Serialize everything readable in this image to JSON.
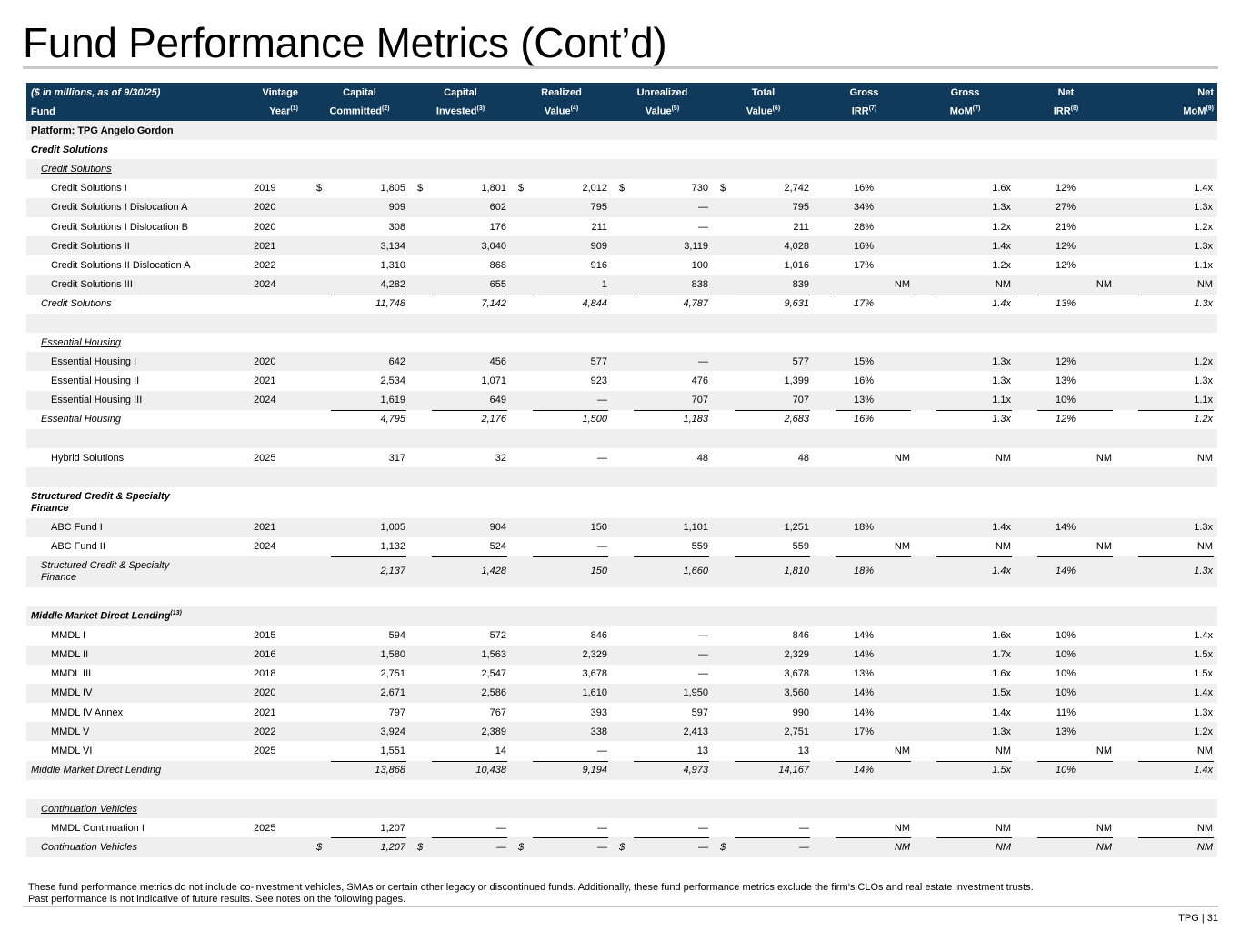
{
  "title": "Fund Performance Metrics (Cont’d)",
  "header": {
    "row1": [
      "($ in millions, as of 9/30/25)",
      "Vintage",
      "Capital",
      "Capital",
      "Realized",
      "Unrealized",
      "Total",
      "Gross",
      "Gross",
      "Net",
      "Net"
    ],
    "row2": [
      {
        "t": "Fund",
        "s": ""
      },
      {
        "t": "Year",
        "s": "(1)"
      },
      {
        "t": "Committed",
        "s": "(2)"
      },
      {
        "t": "Invested",
        "s": "(3)"
      },
      {
        "t": "Value",
        "s": "(4)"
      },
      {
        "t": "Value",
        "s": "(5)"
      },
      {
        "t": "Value",
        "s": "(6)"
      },
      {
        "t": "IRR",
        "s": "(7)"
      },
      {
        "t": "MoM",
        "s": "(7)"
      },
      {
        "t": "IRR",
        "s": "(8)"
      },
      {
        "t": "MoM",
        "s": "(9)"
      }
    ]
  },
  "rows": [
    {
      "kind": "heading",
      "label": "Platform: TPG Angelo Gordon",
      "style": "b",
      "level": 0
    },
    {
      "kind": "heading",
      "label": "Credit Solutions",
      "style": "bi",
      "level": 0
    },
    {
      "kind": "heading",
      "label": "Credit Solutions",
      "style": "iu",
      "level": 1
    },
    {
      "kind": "fund",
      "label": "Credit Solutions I",
      "year": "2019",
      "cur": true,
      "vals": [
        "1,805",
        "1,801",
        "2,012",
        "730",
        "2,742"
      ],
      "metrics": [
        "16%",
        "1.6x",
        "12%",
        "1.4x"
      ]
    },
    {
      "kind": "fund",
      "label": "Credit Solutions I Dislocation A",
      "year": "2020",
      "vals": [
        "909",
        "602",
        "795",
        "—",
        "795"
      ],
      "metrics": [
        "34%",
        "1.3x",
        "27%",
        "1.3x"
      ]
    },
    {
      "kind": "fund",
      "label": "Credit Solutions I Dislocation B",
      "year": "2020",
      "vals": [
        "308",
        "176",
        "211",
        "—",
        "211"
      ],
      "metrics": [
        "28%",
        "1.2x",
        "21%",
        "1.2x"
      ]
    },
    {
      "kind": "fund",
      "label": "Credit Solutions II",
      "year": "2021",
      "vals": [
        "3,134",
        "3,040",
        "909",
        "3,119",
        "4,028"
      ],
      "metrics": [
        "16%",
        "1.4x",
        "12%",
        "1.3x"
      ]
    },
    {
      "kind": "fund",
      "label": "Credit Solutions II Dislocation A",
      "year": "2022",
      "vals": [
        "1,310",
        "868",
        "916",
        "100",
        "1,016"
      ],
      "metrics": [
        "17%",
        "1.2x",
        "12%",
        "1.1x"
      ]
    },
    {
      "kind": "fund",
      "label": "Credit Solutions III",
      "year": "2024",
      "vals": [
        "4,282",
        "655",
        "1",
        "838",
        "839"
      ],
      "metrics": [
        "NM",
        "NM",
        "NM",
        "NM"
      ]
    },
    {
      "kind": "total",
      "label": "Credit Solutions",
      "level": 1,
      "vals": [
        "11,748",
        "7,142",
        "4,844",
        "4,787",
        "9,631"
      ],
      "metrics": [
        "17%",
        "1.4x",
        "13%",
        "1.3x"
      ]
    },
    {
      "kind": "blank"
    },
    {
      "kind": "heading",
      "label": "Essential Housing",
      "style": "iu",
      "level": 1
    },
    {
      "kind": "fund",
      "label": "Essential Housing I",
      "year": "2020",
      "vals": [
        "642",
        "456",
        "577",
        "—",
        "577"
      ],
      "metrics": [
        "15%",
        "1.3x",
        "12%",
        "1.2x"
      ]
    },
    {
      "kind": "fund",
      "label": "Essential Housing II",
      "year": "2021",
      "vals": [
        "2,534",
        "1,071",
        "923",
        "476",
        "1,399"
      ],
      "metrics": [
        "16%",
        "1.3x",
        "13%",
        "1.3x"
      ]
    },
    {
      "kind": "fund",
      "label": "Essential Housing III",
      "year": "2024",
      "vals": [
        "1,619",
        "649",
        "—",
        "707",
        "707"
      ],
      "metrics": [
        "13%",
        "1.1x",
        "10%",
        "1.1x"
      ]
    },
    {
      "kind": "total",
      "label": "Essential Housing",
      "level": 1,
      "vals": [
        "4,795",
        "2,176",
        "1,500",
        "1,183",
        "2,683"
      ],
      "metrics": [
        "16%",
        "1.3x",
        "12%",
        "1.2x"
      ]
    },
    {
      "kind": "blank"
    },
    {
      "kind": "fund",
      "label": "Hybrid Solutions",
      "year": "2025",
      "vals": [
        "317",
        "32",
        "—",
        "48",
        "48"
      ],
      "metrics": [
        "NM",
        "NM",
        "NM",
        "NM"
      ]
    },
    {
      "kind": "blank"
    },
    {
      "kind": "heading",
      "label": "Structured Credit & Specialty Finance",
      "style": "bi",
      "level": 0,
      "tall": true
    },
    {
      "kind": "fund",
      "label": "ABC Fund I",
      "year": "2021",
      "vals": [
        "1,005",
        "904",
        "150",
        "1,101",
        "1,251"
      ],
      "metrics": [
        "18%",
        "1.4x",
        "14%",
        "1.3x"
      ]
    },
    {
      "kind": "fund",
      "label": "ABC Fund II",
      "year": "2024",
      "vals": [
        "1,132",
        "524",
        "—",
        "559",
        "559"
      ],
      "metrics": [
        "NM",
        "NM",
        "NM",
        "NM"
      ]
    },
    {
      "kind": "total",
      "label": "Structured Credit & Specialty Finance",
      "level": 1,
      "tall": true,
      "vals": [
        "2,137",
        "1,428",
        "150",
        "1,660",
        "1,810"
      ],
      "metrics": [
        "18%",
        "1.4x",
        "14%",
        "1.3x"
      ]
    },
    {
      "kind": "blank"
    },
    {
      "kind": "heading",
      "label": "Middle Market Direct Lending",
      "sup": "(13)",
      "style": "bi",
      "level": 0
    },
    {
      "kind": "fund",
      "label": "MMDL I",
      "year": "2015",
      "vals": [
        "594",
        "572",
        "846",
        "—",
        "846"
      ],
      "metrics": [
        "14%",
        "1.6x",
        "10%",
        "1.4x"
      ]
    },
    {
      "kind": "fund",
      "label": "MMDL II",
      "year": "2016",
      "vals": [
        "1,580",
        "1,563",
        "2,329",
        "—",
        "2,329"
      ],
      "metrics": [
        "14%",
        "1.7x",
        "10%",
        "1.5x"
      ]
    },
    {
      "kind": "fund",
      "label": "MMDL III",
      "year": "2018",
      "vals": [
        "2,751",
        "2,547",
        "3,678",
        "—",
        "3,678"
      ],
      "metrics": [
        "13%",
        "1.6x",
        "10%",
        "1.5x"
      ]
    },
    {
      "kind": "fund",
      "label": "MMDL IV",
      "year": "2020",
      "vals": [
        "2,671",
        "2,586",
        "1,610",
        "1,950",
        "3,560"
      ],
      "metrics": [
        "14%",
        "1.5x",
        "10%",
        "1.4x"
      ]
    },
    {
      "kind": "fund",
      "label": "MMDL IV Annex",
      "year": "2021",
      "vals": [
        "797",
        "767",
        "393",
        "597",
        "990"
      ],
      "metrics": [
        "14%",
        "1.4x",
        "11%",
        "1.3x"
      ]
    },
    {
      "kind": "fund",
      "label": "MMDL V",
      "year": "2022",
      "vals": [
        "3,924",
        "2,389",
        "338",
        "2,413",
        "2,751"
      ],
      "metrics": [
        "17%",
        "1.3x",
        "13%",
        "1.2x"
      ]
    },
    {
      "kind": "fund",
      "label": "MMDL VI",
      "year": "2025",
      "vals": [
        "1,551",
        "14",
        "—",
        "13",
        "13"
      ],
      "metrics": [
        "NM",
        "NM",
        "NM",
        "NM"
      ]
    },
    {
      "kind": "total",
      "label": "Middle Market Direct Lending",
      "level": 0,
      "vals": [
        "13,868",
        "10,438",
        "9,194",
        "4,973",
        "14,167"
      ],
      "metrics": [
        "14%",
        "1.5x",
        "10%",
        "1.4x"
      ]
    },
    {
      "kind": "blank"
    },
    {
      "kind": "heading",
      "label": "Continuation Vehicles",
      "style": "iu",
      "level": 1
    },
    {
      "kind": "fund",
      "label": "MMDL Continuation I",
      "year": "2025",
      "vals": [
        "1,207",
        "—",
        "—",
        "—",
        "—"
      ],
      "metrics": [
        "NM",
        "NM",
        "NM",
        "NM"
      ]
    },
    {
      "kind": "total",
      "label": "Continuation Vehicles",
      "level": 1,
      "cur": true,
      "vals": [
        "1,207",
        "—",
        "—",
        "—",
        "—"
      ],
      "metrics": [
        "NM",
        "NM",
        "NM",
        "NM"
      ]
    }
  ],
  "currency_symbol": "$",
  "footnote": {
    "line1": "These fund performance metrics do not include co-investment vehicles, SMAs or certain other legacy or discontinued funds. Additionally, these fund performance metrics exclude the firm’s CLOs and real estate investment trusts.",
    "line2": "Past performance is not indicative of future results. See notes on the following pages."
  },
  "page_number": "TPG | 31"
}
